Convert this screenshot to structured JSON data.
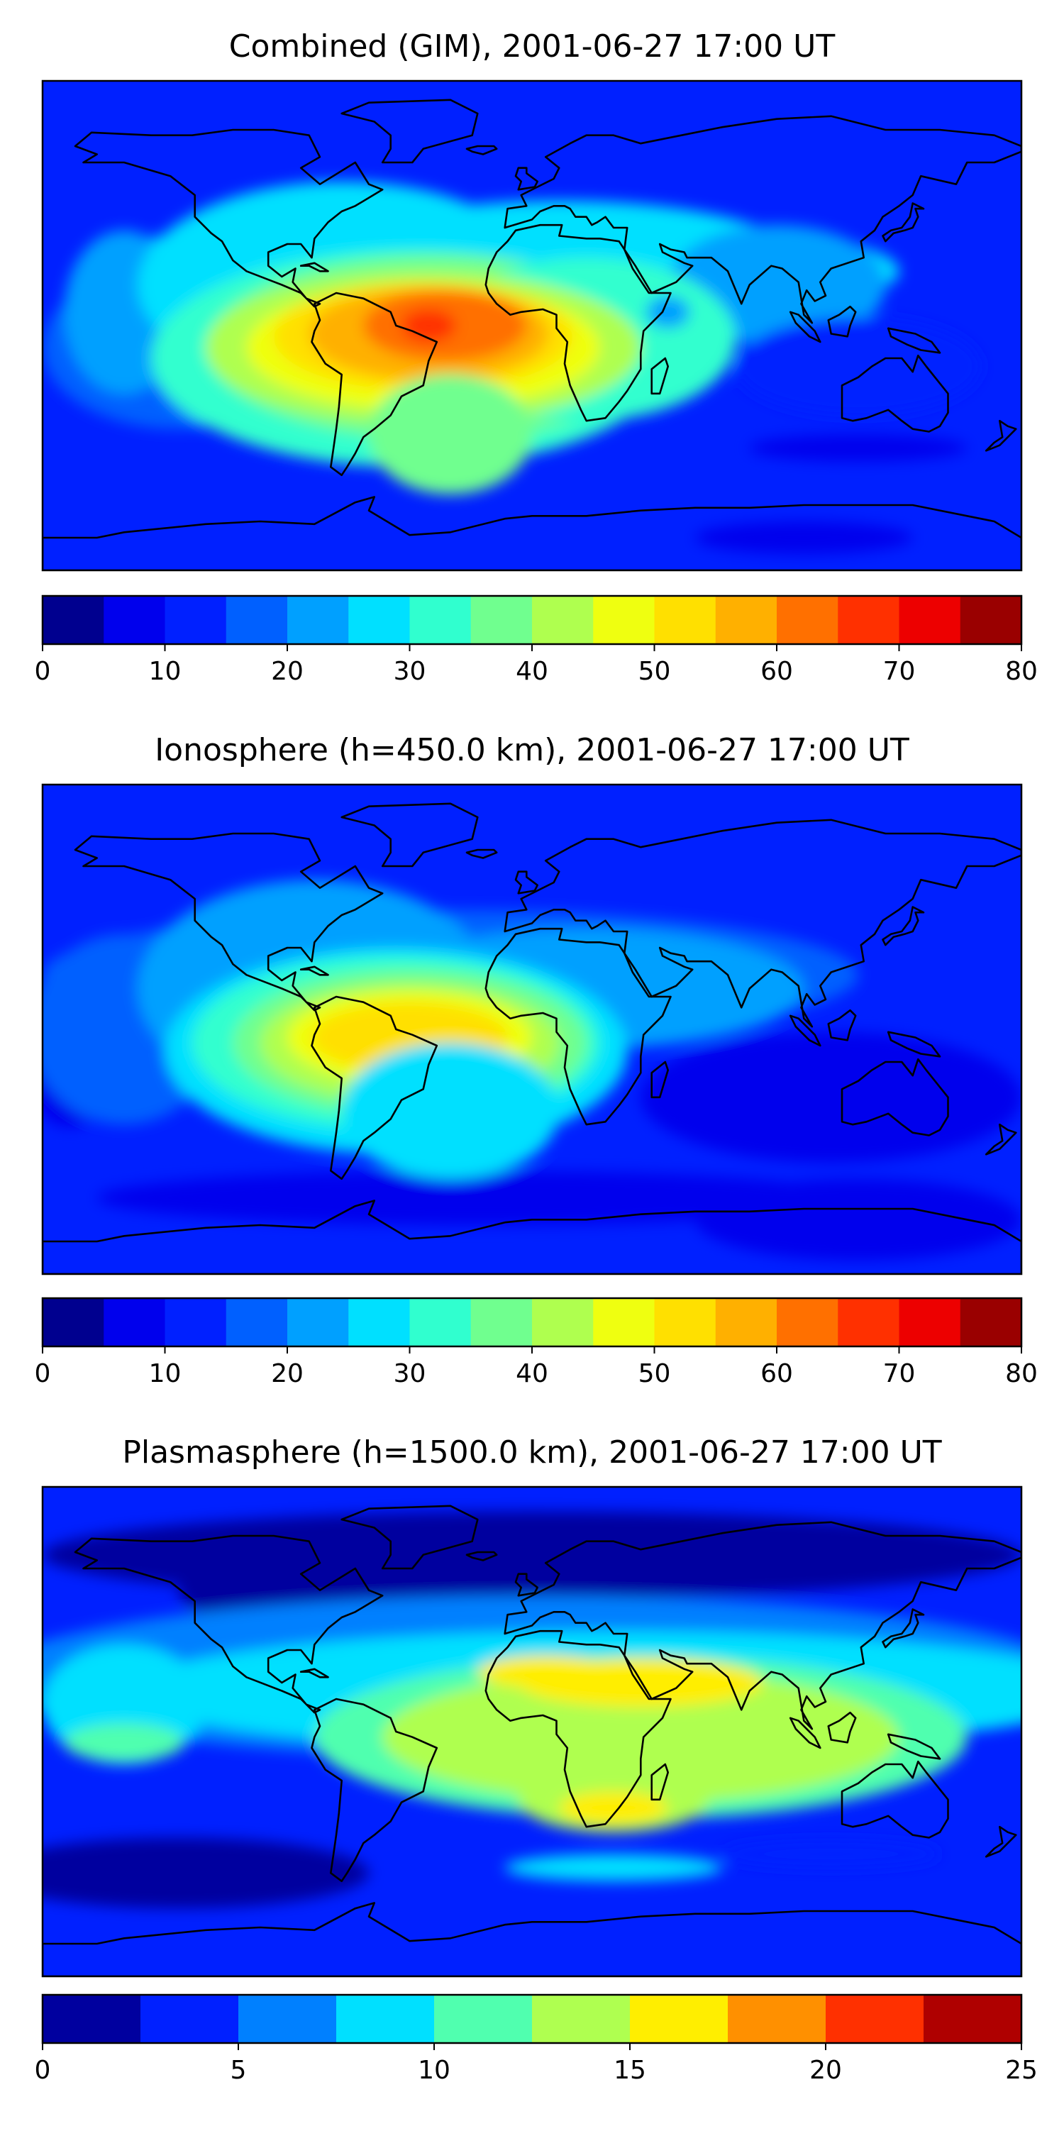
{
  "chart_data": [
    {
      "type": "heatmap",
      "title": "Combined (GIM), 2001-06-27 17:00 UT",
      "colorbar": {
        "min": 0,
        "max": 80,
        "step": 5,
        "ticks": [
          0,
          10,
          20,
          30,
          40,
          50,
          60,
          70,
          80
        ],
        "colors": [
          "#00008f",
          "#0000ed",
          "#0020ff",
          "#0060ff",
          "#00a0ff",
          "#00e0ff",
          "#30ffcf",
          "#70ff8f",
          "#afff4f",
          "#efff10",
          "#ffe000",
          "#ffb000",
          "#ff7000",
          "#ff3000",
          "#ed0000",
          "#9a0000"
        ]
      },
      "features": [
        {
          "name": "max over north-east South America / equatorial Atlantic",
          "value": 62
        },
        {
          "name": "central Pacific band",
          "value": 25
        },
        {
          "name": "Indian Ocean / Australia",
          "value": 15
        },
        {
          "name": "Antarctic / high south",
          "value": 7
        }
      ]
    },
    {
      "type": "heatmap",
      "title": "Ionosphere  (h=450.0 km), 2001-06-27 17:00 UT",
      "colorbar": {
        "min": 0,
        "max": 80,
        "step": 5,
        "ticks": [
          0,
          10,
          20,
          30,
          40,
          50,
          60,
          70,
          80
        ],
        "colors": [
          "#00008f",
          "#0000ed",
          "#0020ff",
          "#0060ff",
          "#00a0ff",
          "#00e0ff",
          "#30ffcf",
          "#70ff8f",
          "#afff4f",
          "#efff10",
          "#ffe000",
          "#ffb000",
          "#ff7000",
          "#ff3000",
          "#ed0000",
          "#9a0000"
        ]
      },
      "features": [
        {
          "name": "max over northern South America",
          "value": 52
        },
        {
          "name": "Pacific",
          "value": 20
        },
        {
          "name": "Indian Ocean / Australia",
          "value": 7
        },
        {
          "name": "Antarctic / high south",
          "value": 4
        }
      ]
    },
    {
      "type": "heatmap",
      "title": "Plasmasphere (h=1500.0 km), 2001-06-27 17:00 UT",
      "colorbar": {
        "min": 0,
        "max": 25,
        "step": 2.5,
        "ticks": [
          0,
          5,
          10,
          15,
          20,
          25
        ],
        "colors": [
          "#00009f",
          "#0020ff",
          "#0080ff",
          "#00e0ff",
          "#50ffaf",
          "#afff50",
          "#ffee00",
          "#ff9000",
          "#ff3000",
          "#af0000"
        ]
      },
      "features": [
        {
          "name": "max over North Africa / Arabia",
          "value": 16
        },
        {
          "name": "southern Africa",
          "value": 15.5
        },
        {
          "name": "tropical band",
          "value": 11
        },
        {
          "name": "high north",
          "value": 1.5
        },
        {
          "name": "high south",
          "value": 1.5
        }
      ]
    }
  ]
}
